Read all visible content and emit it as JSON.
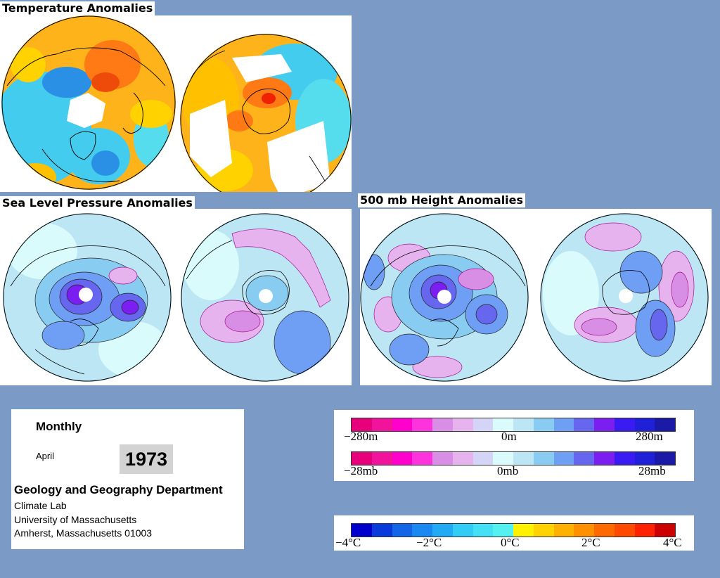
{
  "titles": {
    "temperature": "Temperature Anomalies",
    "slp": "Sea Level Pressure Anomalies",
    "height": "500 mb Height Anomalies"
  },
  "info": {
    "period": "Monthly",
    "month": "April",
    "year": "1973",
    "department": "Geology and Geography Department",
    "lab": "Climate Lab",
    "university": "University of Massachusetts",
    "address": "Amherst, Massachusetts 01003"
  },
  "scales": {
    "height": {
      "min_label": "−280m",
      "mid_label": "0m",
      "max_label": "280m",
      "colors": [
        "#e6007a",
        "#f0149c",
        "#ff00cc",
        "#ff33dd",
        "#d98ee6",
        "#e6b3ee",
        "#d4d4f7",
        "#d9fbfb",
        "#bde6f5",
        "#88ccf2",
        "#6f9ef5",
        "#6666ee",
        "#7a1ff0",
        "#3a1cf2",
        "#2020d9",
        "#1a1aa6"
      ]
    },
    "pressure": {
      "min_label": "−28mb",
      "mid_label": "0mb",
      "max_label": "28mb",
      "colors": [
        "#e6007a",
        "#f0149c",
        "#ff00cc",
        "#ff33dd",
        "#d98ee6",
        "#e6b3ee",
        "#d4d4f7",
        "#d9fbfb",
        "#bde6f5",
        "#88ccf2",
        "#6f9ef5",
        "#6666ee",
        "#7a1ff0",
        "#3a1cf2",
        "#2020d9",
        "#1a1aa6"
      ]
    },
    "temperature": {
      "labels": [
        "−4°C",
        "−2°C",
        "0°C",
        "2°C",
        "4°C"
      ],
      "colors": [
        "#0000cc",
        "#0a3ad9",
        "#1466e6",
        "#1a88f0",
        "#22aaf5",
        "#33ccf7",
        "#44e0f5",
        "#55f0f0",
        "#fff200",
        "#ffd200",
        "#ffb000",
        "#ff9000",
        "#ff6a00",
        "#ff4a00",
        "#ff2200",
        "#cc0000"
      ]
    }
  }
}
